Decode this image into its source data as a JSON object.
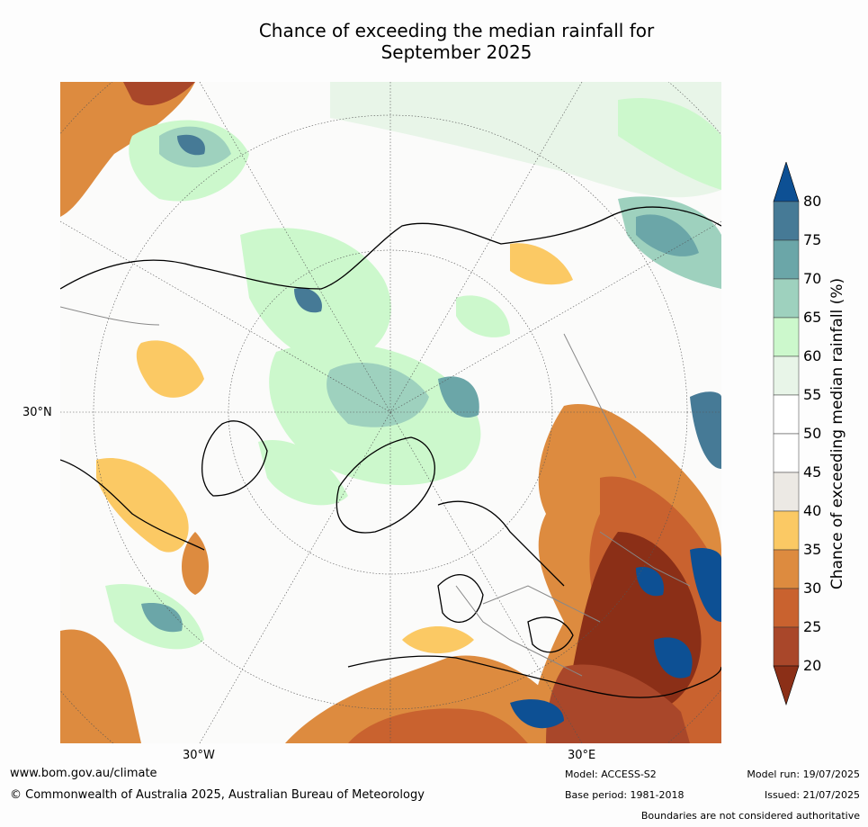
{
  "title": {
    "line1": "Chance of exceeding the median rainfall for",
    "line2": "September 2025"
  },
  "map": {
    "lat_labels": [
      "30°N"
    ],
    "lon_labels": [
      "30°W",
      "30°E"
    ]
  },
  "colorbar": {
    "label": "Chance of exceeding median rainfall (%)",
    "ticks": [
      "20",
      "25",
      "30",
      "35",
      "40",
      "45",
      "50",
      "55",
      "60",
      "65",
      "70",
      "75",
      "80"
    ],
    "colors": [
      "#8b2f17",
      "#a9472a",
      "#c9622f",
      "#dd8b3f",
      "#fbc964",
      "#ece9e4",
      "#ffffff",
      "#ffffff",
      "#e8f5e8",
      "#ccf8cc",
      "#9ed1be",
      "#6ba6a8",
      "#467a96",
      "#0d5094"
    ]
  },
  "footer": {
    "url": "www.bom.gov.au/climate",
    "copyright": "© Commonwealth of Australia 2025, Australian Bureau of Meteorology",
    "model": "Model: ACCESS-S2",
    "base_period": "Base period: 1981-2018",
    "model_run": "Model run: 19/07/2025",
    "issued": "Issued: 21/07/2025",
    "disclaimer": "Boundaries are not considered authoritative"
  }
}
